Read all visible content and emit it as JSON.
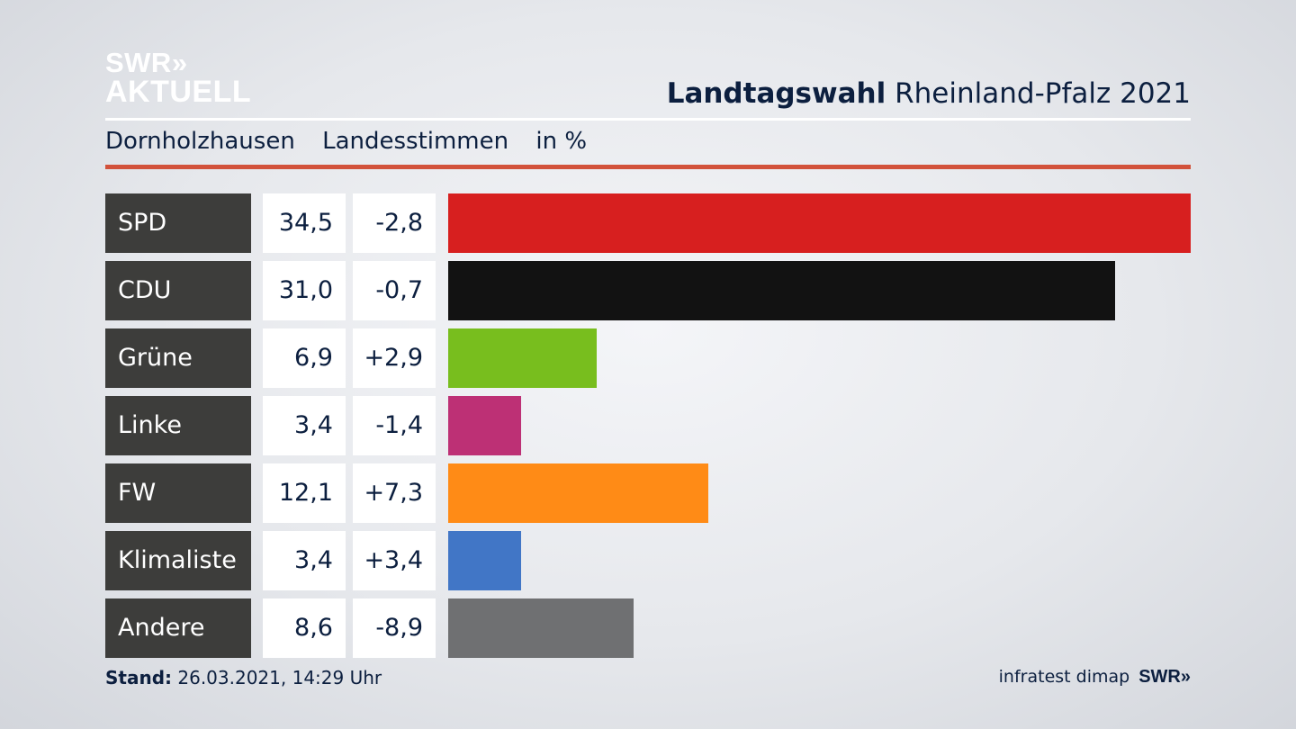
{
  "brand": {
    "line1": "SWR»",
    "line2": "AKTUELL"
  },
  "header": {
    "title_bold": "Landtagswahl",
    "title_rest": " Rheinland-Pfalz 2021"
  },
  "subheader": {
    "place": "Dornholzhausen",
    "measure": "Landesstimmen",
    "unit": "in %"
  },
  "chart_data": {
    "type": "bar",
    "orientation": "horizontal",
    "categories": [
      "SPD",
      "CDU",
      "Grüne",
      "Linke",
      "FW",
      "Klimaliste",
      "Andere"
    ],
    "values": [
      34.5,
      31.0,
      6.9,
      3.4,
      12.1,
      3.4,
      8.6
    ],
    "value_labels": [
      "34,5",
      "31,0",
      "6,9",
      "3,4",
      "12,1",
      "3,4",
      "8,6"
    ],
    "change_labels": [
      "-2,8",
      "-0,7",
      "+2,9",
      "-1,4",
      "+7,3",
      "+3,4",
      "-8,9"
    ],
    "colors": [
      "#d71f1f",
      "#121212",
      "#78be1e",
      "#bd3075",
      "#ff8b16",
      "#4176c6",
      "#6f7072"
    ],
    "xlim": [
      0,
      34.5
    ]
  },
  "footer": {
    "stand_label": "Stand:",
    "stand_value": " 26.03.2021, 14:29 Uhr",
    "source": "infratest dimap",
    "source_logo": "SWR»"
  }
}
